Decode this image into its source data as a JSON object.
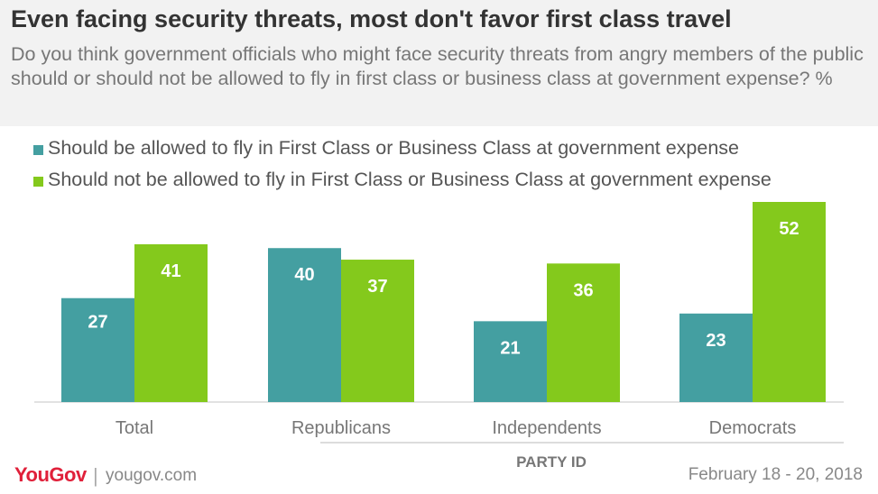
{
  "header": {
    "title": "Even facing security threats, most don't favor first class travel",
    "subtitle": "Do you think government officials who might face security threats from angry members of the public should or should not be allowed to fly in first class or business class at government expense? %"
  },
  "colors": {
    "series_allowed": "#449fa1",
    "series_not_allowed": "#84c91c",
    "header_bg": "#f2f2f2",
    "brand": "#e0203a"
  },
  "chart_data": {
    "type": "bar",
    "categories": [
      "Total",
      "Republicans",
      "Independents",
      "Democrats"
    ],
    "group_label": "PARTY ID",
    "series": [
      {
        "name": "Should be allowed to fly in First Class or Business Class at government expense",
        "values": [
          27,
          40,
          21,
          23
        ]
      },
      {
        "name": "Should not be allowed to fly in First Class or Business Class at government expense",
        "values": [
          41,
          37,
          36,
          52
        ]
      }
    ],
    "ylim": [
      0,
      52
    ],
    "grid": false,
    "legend": "top-left",
    "data_labels": true
  },
  "footer": {
    "logo": "YouGov",
    "divider": "|",
    "url": "yougov.com",
    "date": "February 18 - 20, 2018"
  }
}
